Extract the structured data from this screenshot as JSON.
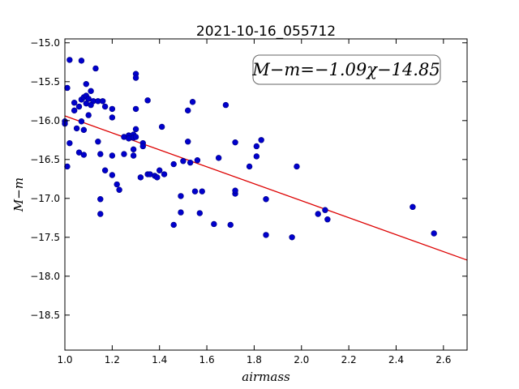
{
  "chart_data": {
    "type": "scatter",
    "title": "2021-10-16_055712",
    "xlabel": "airmass",
    "ylabel": "M−m",
    "xlim": [
      1.0,
      2.7
    ],
    "ylim": [
      -18.95,
      -14.95
    ],
    "y_inverted": true,
    "grid": false,
    "xticks": [
      1.0,
      1.2,
      1.4,
      1.6,
      1.8,
      2.0,
      2.2,
      2.4,
      2.6
    ],
    "xtick_labels": [
      "1.0",
      "1.2",
      "1.4",
      "1.6",
      "1.8",
      "2.0",
      "2.2",
      "2.4",
      "2.6"
    ],
    "yticks": [
      -15.0,
      -15.5,
      -16.0,
      -16.5,
      -17.0,
      -17.5,
      -18.0,
      -18.5
    ],
    "ytick_labels": [
      "−15.0",
      "−15.5",
      "−16.0",
      "−16.5",
      "−17.0",
      "−17.5",
      "−18.0",
      "−18.5"
    ],
    "annotation": "M−m=−1.09χ−14.85",
    "fit": {
      "slope": -1.09,
      "intercept": -14.85
    },
    "colors": {
      "points": "#0000cc",
      "fit_line": "#dd0000"
    },
    "points": [
      [
        1.02,
        -15.22
      ],
      [
        1.07,
        -15.23
      ],
      [
        1.13,
        -15.33
      ],
      [
        1.3,
        -15.4
      ],
      [
        1.3,
        -15.45
      ],
      [
        1.01,
        -15.58
      ],
      [
        1.09,
        -15.53
      ],
      [
        1.11,
        -15.62
      ],
      [
        1.04,
        -15.77
      ],
      [
        1.07,
        -15.73
      ],
      [
        1.08,
        -15.7
      ],
      [
        1.09,
        -15.68
      ],
      [
        1.1,
        -15.72
      ],
      [
        1.12,
        -15.75
      ],
      [
        1.09,
        -15.78
      ],
      [
        1.06,
        -15.82
      ],
      [
        1.04,
        -15.87
      ],
      [
        1.11,
        -15.8
      ],
      [
        1.14,
        -15.75
      ],
      [
        1.16,
        -15.75
      ],
      [
        1.17,
        -15.82
      ],
      [
        1.2,
        -15.85
      ],
      [
        1.1,
        -15.93
      ],
      [
        1.0,
        -16.01
      ],
      [
        1.0,
        -16.04
      ],
      [
        1.05,
        -16.1
      ],
      [
        1.07,
        -16.01
      ],
      [
        1.08,
        -16.12
      ],
      [
        1.2,
        -15.96
      ],
      [
        1.3,
        -15.85
      ],
      [
        1.35,
        -15.74
      ],
      [
        1.41,
        -16.08
      ],
      [
        1.52,
        -15.87
      ],
      [
        1.54,
        -15.76
      ],
      [
        1.68,
        -15.8
      ],
      [
        1.02,
        -16.29
      ],
      [
        1.06,
        -16.41
      ],
      [
        1.08,
        -16.44
      ],
      [
        1.01,
        -16.59
      ],
      [
        1.14,
        -16.27
      ],
      [
        1.15,
        -16.43
      ],
      [
        1.2,
        -16.45
      ],
      [
        1.25,
        -16.43
      ],
      [
        1.25,
        -16.21
      ],
      [
        1.27,
        -16.19
      ],
      [
        1.27,
        -16.23
      ],
      [
        1.29,
        -16.18
      ],
      [
        1.29,
        -16.22
      ],
      [
        1.3,
        -16.11
      ],
      [
        1.3,
        -16.21
      ],
      [
        1.29,
        -16.37
      ],
      [
        1.29,
        -16.45
      ],
      [
        1.33,
        -16.29
      ],
      [
        1.33,
        -16.33
      ],
      [
        1.17,
        -16.64
      ],
      [
        1.2,
        -16.7
      ],
      [
        1.22,
        -16.82
      ],
      [
        1.23,
        -16.89
      ],
      [
        1.32,
        -16.73
      ],
      [
        1.35,
        -16.69
      ],
      [
        1.36,
        -16.69
      ],
      [
        1.38,
        -16.71
      ],
      [
        1.39,
        -16.73
      ],
      [
        1.4,
        -16.64
      ],
      [
        1.42,
        -16.69
      ],
      [
        1.46,
        -16.56
      ],
      [
        1.5,
        -16.52
      ],
      [
        1.52,
        -16.27
      ],
      [
        1.53,
        -16.54
      ],
      [
        1.56,
        -16.51
      ],
      [
        1.15,
        -17.01
      ],
      [
        1.15,
        -17.2
      ],
      [
        1.49,
        -16.97
      ],
      [
        1.49,
        -17.18
      ],
      [
        1.46,
        -17.34
      ],
      [
        1.55,
        -16.91
      ],
      [
        1.58,
        -16.91
      ],
      [
        1.57,
        -17.19
      ],
      [
        1.63,
        -17.33
      ],
      [
        1.65,
        -16.48
      ],
      [
        1.7,
        -17.34
      ],
      [
        1.72,
        -16.94
      ],
      [
        1.72,
        -16.9
      ],
      [
        1.72,
        -16.28
      ],
      [
        1.78,
        -16.59
      ],
      [
        1.81,
        -16.46
      ],
      [
        1.81,
        -16.33
      ],
      [
        1.83,
        -16.25
      ],
      [
        1.85,
        -17.01
      ],
      [
        1.85,
        -17.47
      ],
      [
        1.96,
        -17.5
      ],
      [
        1.98,
        -16.59
      ],
      [
        2.07,
        -17.2
      ],
      [
        2.1,
        -17.15
      ],
      [
        2.11,
        -17.27
      ],
      [
        2.47,
        -17.11
      ],
      [
        2.56,
        -17.45
      ]
    ]
  }
}
